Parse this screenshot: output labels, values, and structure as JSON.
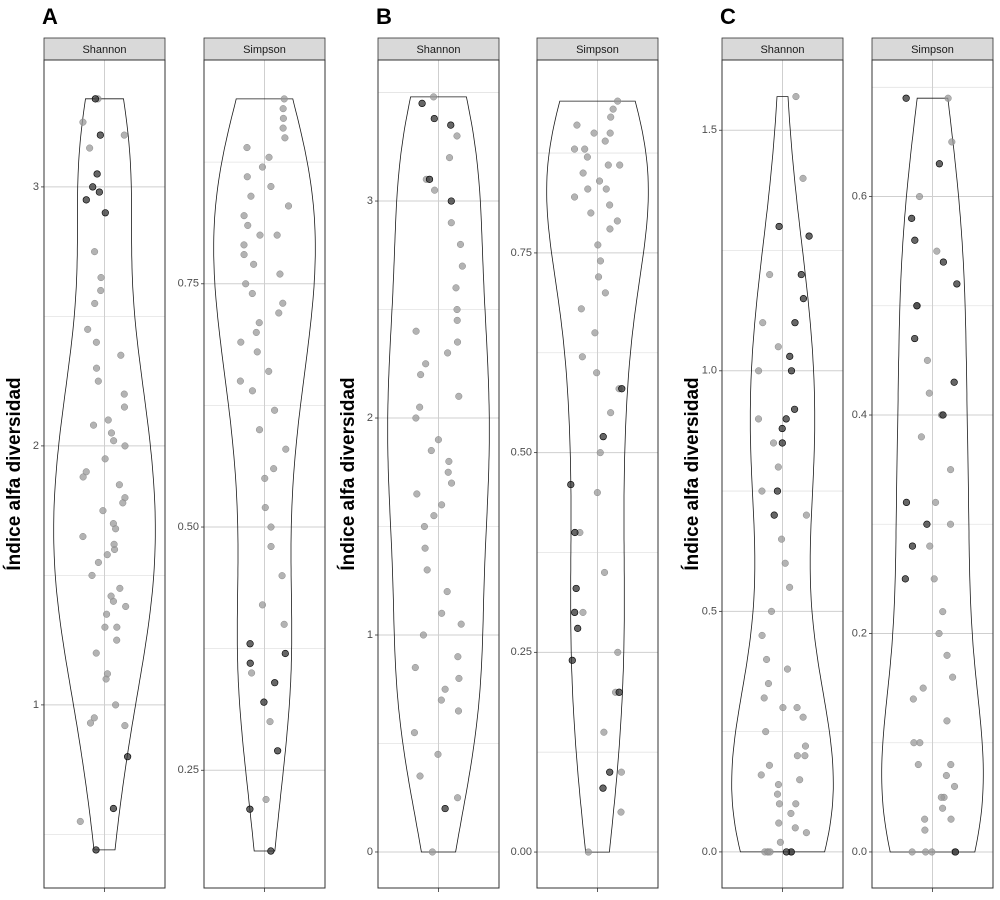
{
  "chart_data": [
    {
      "type": "violin",
      "title": "A",
      "ylabel": "Índice alfa diversidad",
      "color": "#999999",
      "outlier_color": "#333333",
      "facets": [
        {
          "name": "Shannon",
          "ylim": [
            0.293,
            3.49
          ],
          "yticks": [
            1,
            2,
            3
          ],
          "yminor": [
            0.5,
            1.5,
            2.5
          ],
          "values": [
            0.55,
            0.92,
            0.95,
            0.93,
            1.0,
            1.1,
            1.2,
            1.25,
            1.3,
            1.35,
            1.4,
            1.42,
            1.45,
            1.5,
            1.55,
            1.6,
            1.62,
            1.65,
            1.7,
            1.75,
            1.8,
            1.85,
            1.9,
            1.95,
            2.0,
            2.02,
            2.05,
            2.1,
            2.15,
            2.2,
            2.25,
            2.3,
            2.35,
            2.4,
            2.45,
            2.55,
            2.65,
            2.75,
            1.38,
            1.58,
            1.68,
            1.78,
            1.88,
            2.08,
            1.12,
            1.3,
            2.6,
            3.15,
            3.2,
            3.25,
            3.34
          ],
          "outliers": [
            0.44,
            0.6,
            0.8,
            2.9,
            2.95,
            2.98,
            3.0,
            3.05,
            3.2,
            3.34
          ]
        },
        {
          "name": "Simpson",
          "ylim": [
            0.129,
            0.98
          ],
          "yticks": [
            0.25,
            {
              "value": 0.5,
              "label": "0.50"
            },
            0.75
          ],
          "yminor": [
            0.375,
            0.625,
            0.875
          ],
          "values": [
            0.22,
            0.3,
            0.35,
            0.4,
            0.42,
            0.45,
            0.48,
            0.5,
            0.52,
            0.55,
            0.56,
            0.58,
            0.6,
            0.62,
            0.64,
            0.66,
            0.68,
            0.7,
            0.71,
            0.72,
            0.73,
            0.75,
            0.76,
            0.78,
            0.8,
            0.81,
            0.82,
            0.83,
            0.84,
            0.85,
            0.86,
            0.87,
            0.88,
            0.89,
            0.9,
            0.91,
            0.92,
            0.93,
            0.94,
            0.8,
            0.77,
            0.69,
            0.74,
            0.79,
            0.65
          ],
          "outliers": [
            0.167,
            0.21,
            0.27,
            0.32,
            0.34,
            0.36,
            0.37,
            0.38
          ]
        }
      ]
    },
    {
      "type": "violin",
      "title": "B",
      "ylabel": "Índice alfa diversidad",
      "color": "#999999",
      "outlier_color": "#333333",
      "facets": [
        {
          "name": "Shannon",
          "ylim": [
            -0.166,
            3.65
          ],
          "yticks": [
            0,
            1,
            2,
            3
          ],
          "yminor": [
            0.5,
            1.5,
            2.5,
            3.5
          ],
          "values": [
            0,
            0.25,
            0.35,
            0.45,
            0.55,
            0.65,
            0.75,
            0.8,
            0.85,
            0.9,
            1.0,
            1.05,
            1.1,
            1.2,
            1.3,
            1.4,
            1.5,
            1.6,
            1.65,
            1.7,
            1.75,
            1.8,
            1.9,
            2.0,
            2.05,
            2.1,
            2.2,
            2.3,
            2.35,
            2.4,
            2.5,
            2.6,
            2.7,
            2.8,
            2.9,
            3.05,
            3.1,
            3.2,
            3.3,
            3.48,
            2.25,
            1.55,
            2.45,
            0.7,
            1.85
          ],
          "outliers": [
            0.2,
            3.0,
            3.1,
            3.35,
            3.38,
            3.45
          ]
        },
        {
          "name": "Simpson",
          "ylim": [
            -0.045,
            0.9915
          ],
          "yticks": [
            {
              "value": 0,
              "label": "0.00"
            },
            0.25,
            {
              "value": 0.5,
              "label": "0.50"
            },
            0.75
          ],
          "yminor": [
            0.125,
            0.375,
            0.625,
            0.875
          ],
          "values": [
            0,
            0.05,
            0.1,
            0.15,
            0.2,
            0.25,
            0.3,
            0.35,
            0.4,
            0.45,
            0.5,
            0.55,
            0.58,
            0.6,
            0.62,
            0.65,
            0.68,
            0.7,
            0.72,
            0.74,
            0.76,
            0.78,
            0.8,
            0.81,
            0.82,
            0.83,
            0.84,
            0.85,
            0.86,
            0.87,
            0.88,
            0.89,
            0.9,
            0.91,
            0.92,
            0.93,
            0.94,
            0.79,
            0.83,
            0.86,
            0.88,
            0.9
          ],
          "outliers": [
            0.08,
            0.1,
            0.2,
            0.24,
            0.28,
            0.3,
            0.33,
            0.4,
            0.46,
            0.52,
            0.58
          ]
        }
      ]
    },
    {
      "type": "violin",
      "title": "C",
      "ylabel": "Índice alfa diversidad",
      "color": "#999999",
      "outlier_color": "#333333",
      "facets": [
        {
          "name": "Shannon",
          "ylim": [
            -0.075,
            1.646
          ],
          "yticks": [
            {
              "value": 0,
              "label": "0.0"
            },
            0.5,
            {
              "value": 1,
              "label": "1.0"
            },
            1.5
          ],
          "yminor": [
            0.25,
            0.75,
            1.25
          ],
          "values": [
            0,
            0,
            0,
            0,
            0,
            0.02,
            0.04,
            0.06,
            0.08,
            0.1,
            0.12,
            0.14,
            0.16,
            0.18,
            0.2,
            0.22,
            0.25,
            0.28,
            0.3,
            0.32,
            0.35,
            0.38,
            0.4,
            0.45,
            0.5,
            0.55,
            0.6,
            0.65,
            0.7,
            0.75,
            0.8,
            0.85,
            0.9,
            1.0,
            1.05,
            1.1,
            1.2,
            1.4,
            1.57,
            0.05,
            0.1,
            0.15,
            0.2,
            0.3
          ],
          "outliers": [
            0,
            0,
            0.7,
            0.75,
            0.85,
            0.88,
            0.9,
            0.92,
            1.0,
            1.03,
            1.1,
            1.15,
            1.2,
            1.28,
            1.3
          ]
        },
        {
          "name": "Simpson",
          "ylim": [
            -0.033,
            0.725
          ],
          "yticks": [
            {
              "value": 0,
              "label": "0.0"
            },
            0.2,
            0.4,
            0.6
          ],
          "yminor": [
            0.1,
            0.3,
            0.5,
            0.7
          ],
          "values": [
            0,
            0,
            0,
            0,
            0,
            0.02,
            0.03,
            0.04,
            0.05,
            0.06,
            0.07,
            0.08,
            0.1,
            0.12,
            0.14,
            0.16,
            0.18,
            0.2,
            0.22,
            0.25,
            0.28,
            0.3,
            0.32,
            0.35,
            0.38,
            0.4,
            0.42,
            0.45,
            0.5,
            0.55,
            0.6,
            0.65,
            0.69,
            0.03,
            0.05,
            0.08,
            0.1,
            0.15
          ],
          "outliers": [
            0,
            0.25,
            0.28,
            0.3,
            0.32,
            0.4,
            0.43,
            0.47,
            0.5,
            0.52,
            0.54,
            0.56,
            0.58,
            0.63,
            0.69
          ]
        }
      ]
    }
  ]
}
